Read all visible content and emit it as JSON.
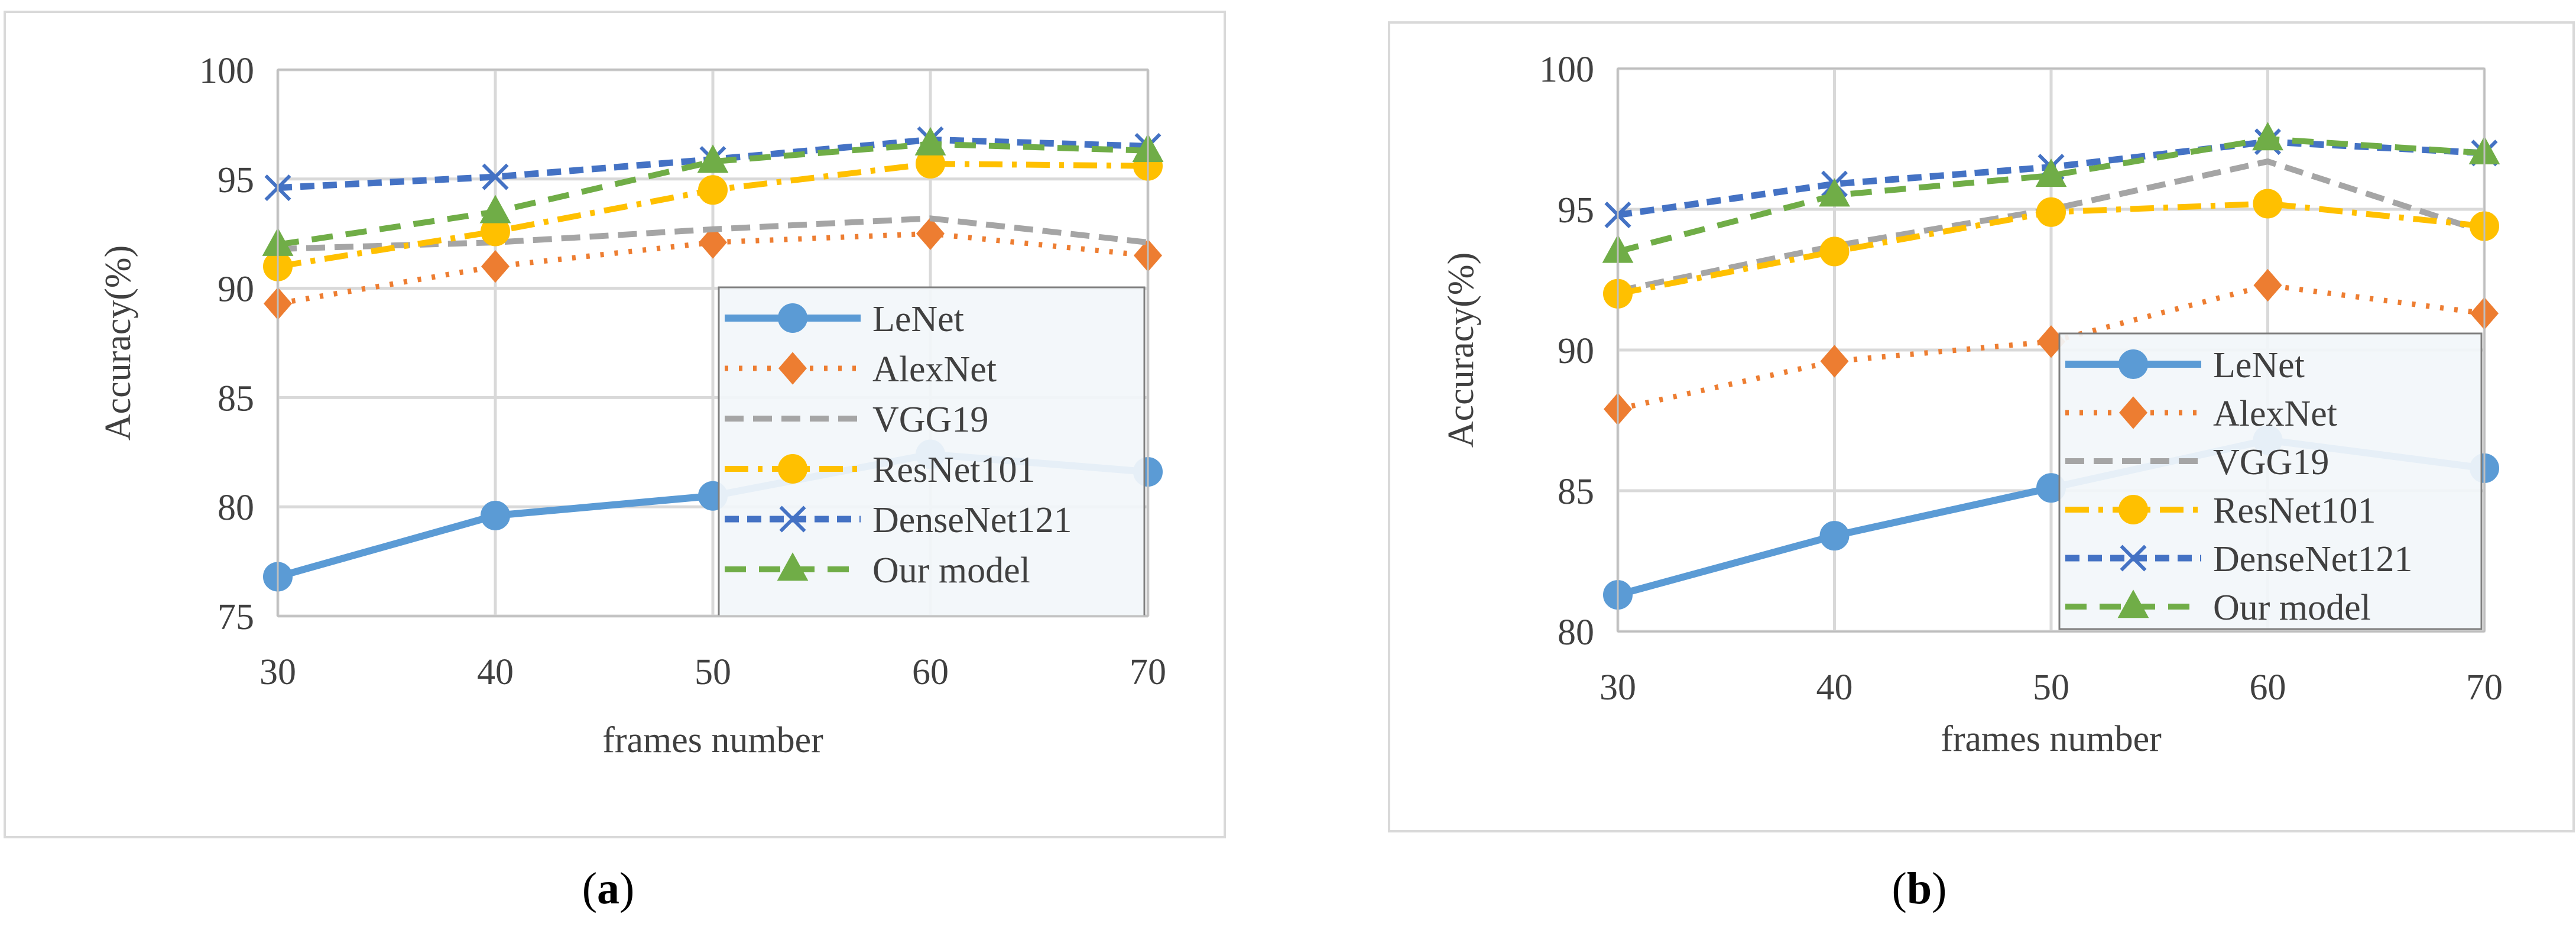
{
  "colors": {
    "LeNet": "#5B9BD5",
    "AlexNet": "#ED7D31",
    "VGG19": "#A5A5A5",
    "ResNet101": "#FFC000",
    "DenseNet121": "#4472C4",
    "Our model": "#70AD47",
    "grid": "#d9d9d9",
    "axis": "#bfbfbf",
    "legendFill": "#f2f6fa"
  },
  "captions": {
    "a": {
      "open": "(",
      "letter": "a",
      "close": ")"
    },
    "b": {
      "open": "(",
      "letter": "b",
      "close": ")"
    }
  },
  "chart_data": [
    {
      "id": "a",
      "type": "line",
      "xlabel": "frames number",
      "ylabel": "Accuracy(%)",
      "categories": [
        "30",
        "40",
        "50",
        "60",
        "70"
      ],
      "yticks": [
        75,
        80,
        85,
        90,
        95,
        100
      ],
      "ylim": [
        75,
        100
      ],
      "grid": true,
      "legend_position": "bottom-right",
      "series": [
        {
          "name": "LeNet",
          "values": [
            76.8,
            79.6,
            80.5,
            82.4,
            81.6
          ]
        },
        {
          "name": "AlexNet",
          "values": [
            89.3,
            91.0,
            92.1,
            92.5,
            91.5
          ]
        },
        {
          "name": "VGG19",
          "values": [
            91.8,
            92.1,
            92.7,
            93.2,
            92.1
          ]
        },
        {
          "name": "ResNet101",
          "values": [
            91.0,
            92.6,
            94.5,
            95.7,
            95.6
          ]
        },
        {
          "name": "DenseNet121",
          "values": [
            94.6,
            95.1,
            95.9,
            96.8,
            96.5
          ]
        },
        {
          "name": "Our model",
          "values": [
            92.0,
            93.5,
            95.8,
            96.6,
            96.3
          ]
        }
      ]
    },
    {
      "id": "b",
      "type": "line",
      "xlabel": "frames number",
      "ylabel": "Accuracy(%)",
      "categories": [
        "30",
        "40",
        "50",
        "60",
        "70"
      ],
      "yticks": [
        80,
        85,
        90,
        95,
        100
      ],
      "ylim": [
        80,
        100
      ],
      "grid": true,
      "legend_position": "bottom-right",
      "series": [
        {
          "name": "LeNet",
          "values": [
            81.3,
            83.4,
            85.1,
            86.8,
            85.8
          ]
        },
        {
          "name": "AlexNet",
          "values": [
            87.9,
            89.6,
            90.3,
            92.3,
            91.3
          ]
        },
        {
          "name": "VGG19",
          "values": [
            92.1,
            93.7,
            95.0,
            96.7,
            94.2
          ]
        },
        {
          "name": "ResNet101",
          "values": [
            92.0,
            93.5,
            94.9,
            95.2,
            94.4
          ]
        },
        {
          "name": "DenseNet121",
          "values": [
            94.8,
            95.9,
            96.5,
            97.4,
            97.0
          ]
        },
        {
          "name": "Our model",
          "values": [
            93.5,
            95.5,
            96.2,
            97.5,
            97.0
          ]
        }
      ]
    }
  ]
}
